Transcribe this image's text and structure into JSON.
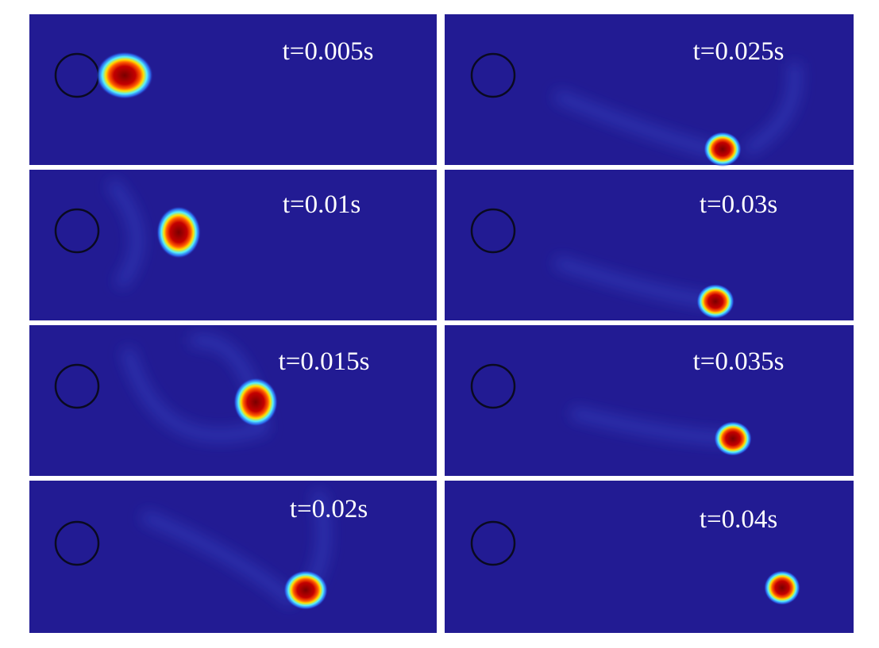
{
  "panels": [
    {
      "label": "t=0.005s"
    },
    {
      "label": "t=0.025s"
    },
    {
      "label": "t=0.01s"
    },
    {
      "label": "t=0.03s"
    },
    {
      "label": "t=0.015s"
    },
    {
      "label": "t=0.035s"
    },
    {
      "label": "t=0.02s"
    },
    {
      "label": "t=0.04s"
    }
  ]
}
